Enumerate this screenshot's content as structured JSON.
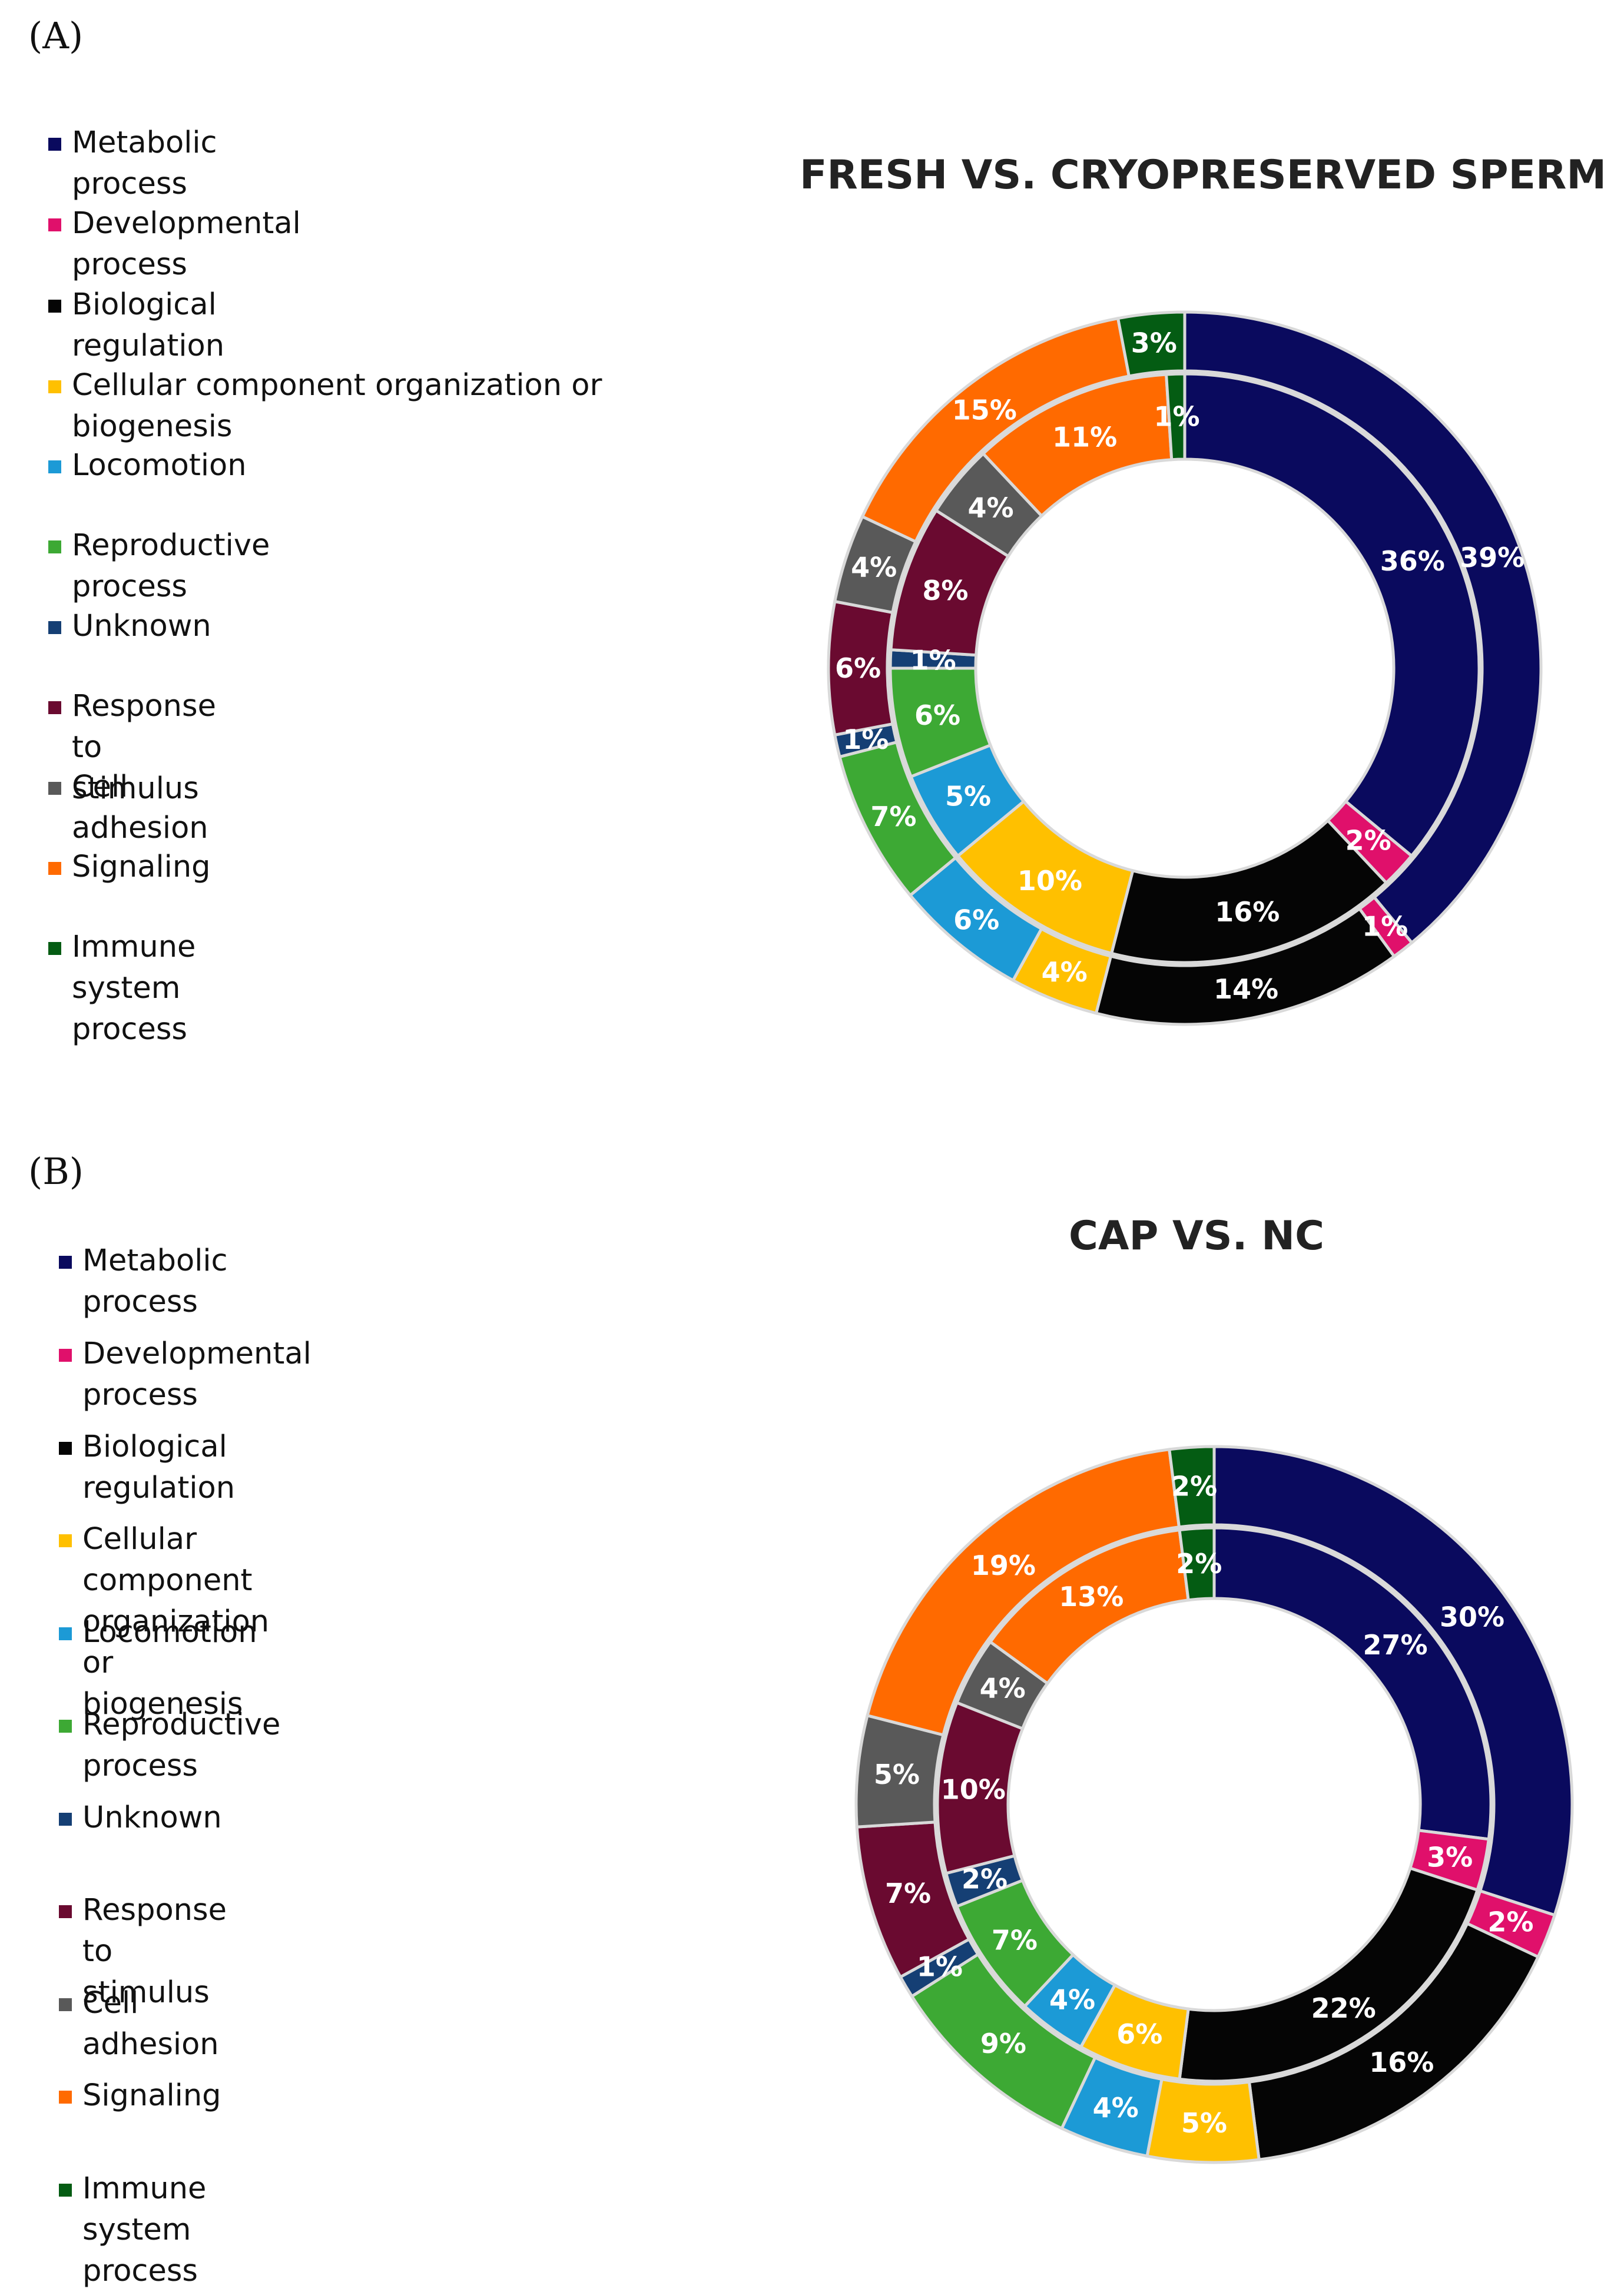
{
  "panels": [
    {
      "panel_label": "(A)",
      "chart_title": "FRESH VS. CRYOPRESERVED SPERM",
      "legend_items": [
        "Metabolic process",
        "Developmental process",
        "Biological regulation",
        "Cellular component organization or biogenesis",
        "Locomotion",
        "Reproductive process",
        "Unknown",
        "Response to stimulus",
        "Cell adhesion",
        "Signaling",
        "Immune system process"
      ]
    },
    {
      "panel_label": "(B)",
      "chart_title": "CAP VS. NC",
      "legend_items": [
        "Metabolic process",
        "Developmental process",
        "Biological regulation",
        "Cellular component organization or biogenesis",
        "Locomotion",
        "Reproductive process",
        "Unknown",
        "Response to stimulus",
        "Cell adhesion",
        "Signaling",
        "Immune system process"
      ]
    }
  ],
  "colors": [
    "#0a0a5e",
    "#e0106b",
    "#050505",
    "#ffc000",
    "#1c9ad6",
    "#3da934",
    "#153f74",
    "#6a0a30",
    "#595959",
    "#ff6a00",
    "#045c13"
  ],
  "chart_data": [
    {
      "type": "pie",
      "subtype": "nested-donut",
      "title": "FRESH VS. CRYOPRESERVED SPERM",
      "categories": [
        "Metabolic process",
        "Developmental process",
        "Biological regulation",
        "Cellular component organization or biogenesis",
        "Locomotion",
        "Reproductive process",
        "Unknown",
        "Response to stimulus",
        "Cell adhesion",
        "Signaling",
        "Immune system process"
      ],
      "series": [
        {
          "name": "outer ring",
          "values": [
            39,
            1,
            14,
            4,
            6,
            7,
            1,
            6,
            4,
            15,
            3
          ],
          "labels": [
            "39%",
            "1%",
            "14%",
            "4%",
            "6%",
            "7%",
            "1%",
            "6%",
            "4%",
            "15%",
            "3%"
          ]
        },
        {
          "name": "inner ring",
          "values": [
            36,
            2,
            16,
            10,
            5,
            6,
            1,
            8,
            4,
            11,
            1
          ],
          "labels": [
            "36%",
            "2%",
            "16%",
            "10%",
            "5%",
            "6%",
            "1%",
            "8%",
            "4%",
            "11%",
            "1%"
          ]
        }
      ],
      "legend_position": "left"
    },
    {
      "type": "pie",
      "subtype": "nested-donut",
      "title": "CAP VS. NC",
      "categories": [
        "Metabolic process",
        "Developmental process",
        "Biological regulation",
        "Cellular component organization or biogenesis",
        "Locomotion",
        "Reproductive process",
        "Unknown",
        "Response to stimulus",
        "Cell adhesion",
        "Signaling",
        "Immune system process"
      ],
      "series": [
        {
          "name": "outer ring",
          "values": [
            30,
            2,
            16,
            5,
            4,
            9,
            1,
            7,
            5,
            19,
            2
          ],
          "labels": [
            "30%",
            "2%",
            "16%",
            "5%",
            "4%",
            "9%",
            "1%",
            "7%",
            "5%",
            "19%",
            "2%"
          ]
        },
        {
          "name": "inner ring",
          "values": [
            27,
            3,
            22,
            6,
            4,
            7,
            2,
            10,
            4,
            13,
            2
          ],
          "labels": [
            "27%",
            "3%",
            "22%",
            "6%",
            "4%",
            "7%",
            "2%",
            "10%",
            "4%",
            "13%",
            "2%"
          ]
        }
      ],
      "legend_position": "left"
    }
  ]
}
